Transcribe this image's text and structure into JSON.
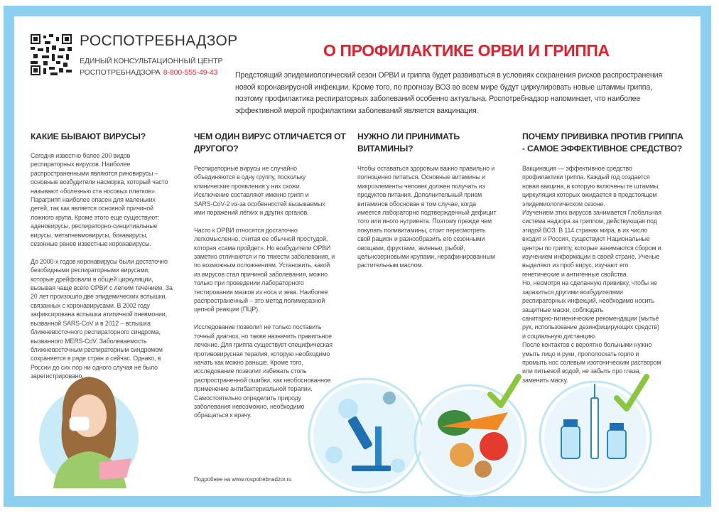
{
  "header": {
    "brand": "РОСПОТРЕБНАДЗОР",
    "subtitle_line1": "ЕДИНЫЙ КОНСУЛЬТАЦИОННЫЙ ЦЕНТР",
    "subtitle_line2": "РОСПОТРЕБНАДЗОРА",
    "phone": "8-800-555-49-43",
    "title": "О ПРОФИЛАКТИКЕ ОРВИ И ГРИППА"
  },
  "intro": [
    "Предстоящий эпидемиологический сезон ОРВИ и гриппа будет развиваться в условиях сохранения рисков распространения",
    "новой коронавирусной инфекции. Кроме того, по прогнозу ВОЗ во всем мире будут циркулировать новые штаммы гриппа,",
    "поэтому профилактика респираторных заболеваний особенно актуальна. Роспотребнадзор напоминает, что наиболее",
    "эффективной мерой профилактики заболеваний является вакцинация."
  ],
  "columns": [
    {
      "heading": [
        "КАКИЕ БЫВАЮТ ВИРУСЫ?"
      ],
      "paragraphs": [
        [
          "Сегодня известно более 200 видов",
          "респираторных вирусов. Наиболее",
          "распространенными являются риновирусы –",
          "основные возбудители насморка, который часто",
          "называют «болезнью ста носовых платков».",
          "Парагрипп наиболее опасен для маленьких",
          "детей, так как является основной причиной",
          "ложного крупа. Кроме этого еще существуют:",
          "аденовирусы, респираторно-синцитиальные",
          "вирусы, метапневмовирусы, бокавирусы,",
          "сезонные ранее известные коронавирусы."
        ],
        [
          "До 2000-х годов коронавирусы были достаточно",
          "безобидными респираторными вирусами,",
          "которые дрейфовали в общей циркуляции,",
          "вызывая чаще всего ОРВИ с легким течением. За",
          "20 лет произошло две эпидемических вспышки,",
          "связанных с коронавирусами. В 2002 году",
          "зафиксирована вспышка атипичной пневмонии,",
          "вызванной SARS-CoV и в 2012 – вспышка",
          "ближневосточного респираторного синдрома,",
          "вызванного MERS-CoV. Заболеваемость",
          "ближневосточным респираторным синдромом",
          "сохраняется в ряде стран и сейчас. Однако, в",
          "России до сих пор ни одного случая не было",
          "зарегистрировано."
        ]
      ]
    },
    {
      "heading": [
        "ЧЕМ ОДИН ВИРУС ОТЛИЧАЕТСЯ ОТ",
        "ДРУГОГО?"
      ],
      "paragraphs": [
        [
          "Респираторные вирусы не случайно",
          "объединяются в одну группу, поскольку",
          "клинические проявления у них схожи.",
          "Исключение составляют именно грипп и",
          "SARS-CoV-2 из-за особенностей вызываемых",
          "ими поражений лёгких и других органов."
        ],
        [
          "Часто к ОРВИ относятся достаточно",
          "легкомысленно, считая ее обычной простудой,",
          "которая «сама пройдет». Но возбудители ОРВИ",
          "заметно отличаются и по тяжести заболевания, и",
          "по возможным осложнениям. Установить, какой",
          "из вирусов стал причиной заболевания, можно",
          "только при проведении лабораторного",
          "тестирования мазков из носа и зева. Наиболее",
          "распространенный – это метод полимеразной",
          "цепной реакции (ПЦР)."
        ],
        [
          "Исследование позволит не только поставить",
          "точный диагноз, но также назначить правильное",
          "лечение. Для гриппа существует специфическая",
          "противовирусная терапия, которую необходимо",
          "начать как можно раньше. Кроме того,",
          "исследование позволит избежать столь",
          "распространенной ошибки, как необоснованное",
          "применение антибактериальной терапии.",
          "Самостоятельно определить природу",
          "заболевания невозможно, необходимо",
          "обращаться к врачу."
        ]
      ]
    },
    {
      "heading": [
        "НУЖНО ЛИ ПРИНИМАТЬ",
        "ВИТАМИНЫ?"
      ],
      "paragraphs": [
        [
          "Чтобы оставаться здоровым важно правильно и",
          "полноценно питаться. Основные витамины и",
          "микроэлементы человек должен получать из",
          "продуктов питания. Дополнительный прием",
          "витаминов обоснован в том случае, когда",
          "имеется лабораторно подтвержденный дефицит",
          "того или иного нутриента. Поэтому прежде чем",
          "покупать поливитамины, стоит пересмотреть",
          "свой рацион и разнообразить его сезонными",
          "овощами, фруктами, зеленью, рыбой,",
          "цельнозерновыми крупами, нерафинированным",
          "растительным маслом."
        ]
      ]
    },
    {
      "heading": [
        "ПОЧЕМУ ПРИВИВКА ПРОТИВ ГРИППА",
        "- САМОЕ ЭФФЕКТИВНОЕ СРЕДСТВО?"
      ],
      "paragraphs": [
        [
          "Вакцинация — эффективное средство",
          "профилактики гриппа. Каждый год создается",
          "новая вакцина, в которую включены те штаммы,",
          "циркуляция которых ожидается в предстоящем",
          "эпидемиологическом сезоне."
        ],
        [
          "Изучением этих вирусов занимается Глобальная",
          "система надзора за гриппом, действующая под",
          "эгидой ВОЗ. В 114 странах мира, в их число",
          "входит и Россия, существуют Национальные",
          "центры по гриппу, которые занимаются сбором и",
          "изучением информации в своей стране. Ученые",
          "выделяют из проб вирус, изучают его",
          "генетические и антигенные свойства."
        ],
        [
          "Но, несмотря на сделанную прививку, чтобы не",
          "заразиться другими возбудителями",
          "респираторных инфекций, необходимо носить",
          "защитные маски,  соблюдать",
          "санитарно-гигиенические рекомендации (мытьё",
          "рук, использование дезинфицирующих средств)",
          "и социальную дистанцию."
        ],
        [
          "После контактов с вероятно больными нужно",
          "умыть лицо и руки, прополоскать горло и",
          "промыть нос солевым изотоническим раствором",
          "или питьевой водой, не забыть про глаза,",
          "заменить маску."
        ]
      ]
    }
  ],
  "footer": "Подробнее на www.rospotrebnadzor.ru",
  "colors": {
    "frame": "#8ccff1",
    "title": "#e31e2d",
    "phone": "#e5273d",
    "circle": "#bfe6f7",
    "check": "#8cc63f"
  },
  "illustrations": [
    "woman-with-tissue",
    "microscope-with-viruses",
    "vegetables",
    "vaccine-vials-and-syringe"
  ]
}
